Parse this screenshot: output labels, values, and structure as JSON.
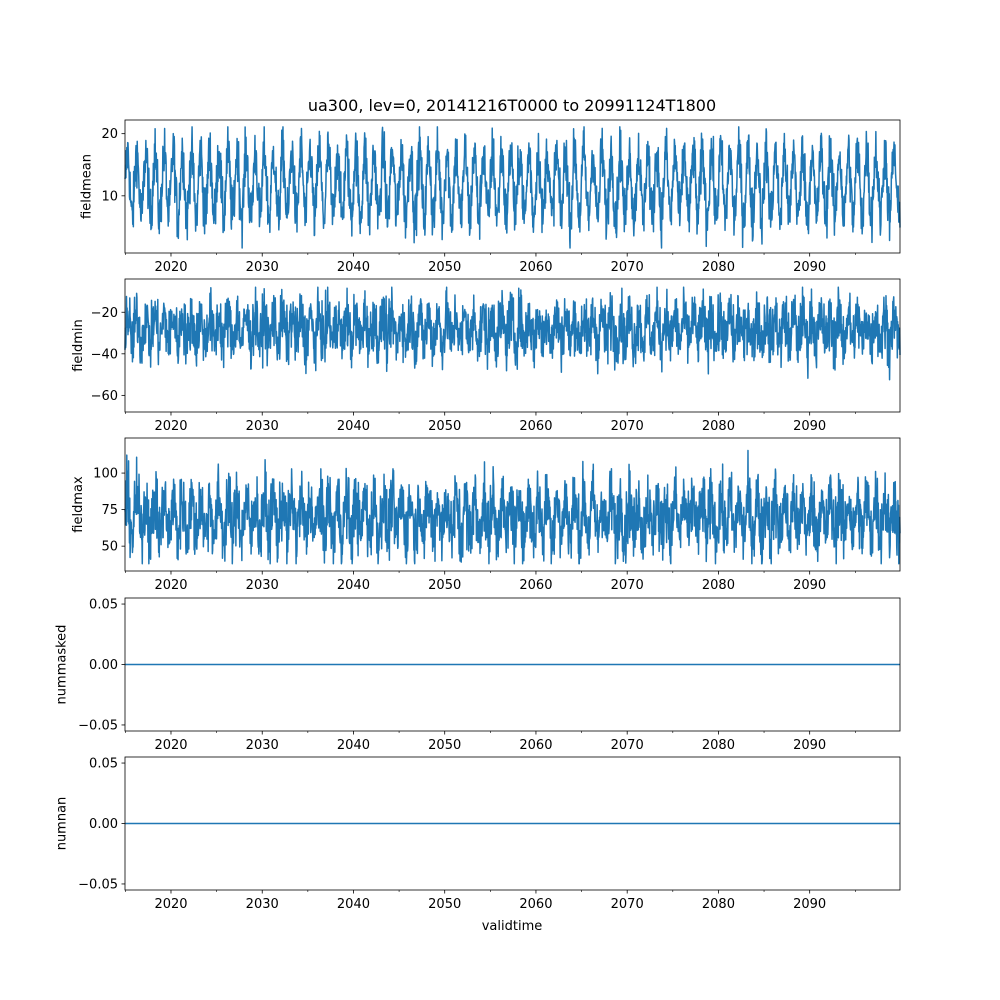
{
  "figure_title": "ua300, lev=0, 20141216T0000 to 20991124T1800",
  "xlabel": "validtime",
  "chart_data": [
    {
      "type": "line",
      "ylabel": "fieldmean",
      "xlim": [
        2014.96,
        2099.9
      ],
      "ylim": [
        0.8,
        22.2
      ],
      "xticks": [
        2020,
        2030,
        2040,
        2050,
        2060,
        2070,
        2080,
        2090
      ],
      "yticks": [
        10,
        20
      ],
      "ytick_labels": [
        "10",
        "20"
      ],
      "color": "#1f77b4",
      "series_summary": {
        "name": "fieldmean",
        "mean": 11.8,
        "seasonal_amplitude": 5.2,
        "noise": 2.2,
        "min": 1.6,
        "max": 21.1
      }
    },
    {
      "type": "line",
      "ylabel": "fieldmin",
      "xlim": [
        2014.96,
        2099.9
      ],
      "ylim": [
        -68,
        -4
      ],
      "xticks": [
        2020,
        2030,
        2040,
        2050,
        2060,
        2070,
        2080,
        2090
      ],
      "yticks": [
        -60,
        -40,
        -20
      ],
      "ytick_labels": [
        "−60",
        "−40",
        "−20"
      ],
      "color": "#1f77b4",
      "series_summary": {
        "name": "fieldmin",
        "mean": -28,
        "seasonal_amplitude": 6,
        "noise": 7,
        "min": -65,
        "max": -8
      }
    },
    {
      "type": "line",
      "ylabel": "fieldmax",
      "xlim": [
        2014.96,
        2099.9
      ],
      "ylim": [
        33,
        124
      ],
      "xticks": [
        2020,
        2030,
        2040,
        2050,
        2060,
        2070,
        2080,
        2090
      ],
      "yticks": [
        50,
        75,
        100
      ],
      "ytick_labels": [
        "50",
        "75",
        "100"
      ],
      "color": "#1f77b4",
      "series_summary": {
        "name": "fieldmax",
        "mean": 70,
        "seasonal_amplitude": 12,
        "noise": 12,
        "min": 38,
        "max": 120
      }
    },
    {
      "type": "line",
      "ylabel": "nummasked",
      "xlim": [
        2014.96,
        2099.9
      ],
      "ylim": [
        -0.055,
        0.055
      ],
      "xticks": [
        2020,
        2030,
        2040,
        2050,
        2060,
        2070,
        2080,
        2090
      ],
      "yticks": [
        -0.05,
        0,
        0.05
      ],
      "ytick_labels": [
        "−0.05",
        "0.00",
        "0.05"
      ],
      "color": "#1f77b4",
      "series_summary": {
        "name": "nummasked",
        "constant": 0
      }
    },
    {
      "type": "line",
      "ylabel": "numnan",
      "xlim": [
        2014.96,
        2099.9
      ],
      "ylim": [
        -0.055,
        0.055
      ],
      "xticks": [
        2020,
        2030,
        2040,
        2050,
        2060,
        2070,
        2080,
        2090
      ],
      "yticks": [
        -0.05,
        0,
        0.05
      ],
      "ytick_labels": [
        "−0.05",
        "0.00",
        "0.05"
      ],
      "color": "#1f77b4",
      "series_summary": {
        "name": "numnan",
        "constant": 0
      }
    }
  ]
}
